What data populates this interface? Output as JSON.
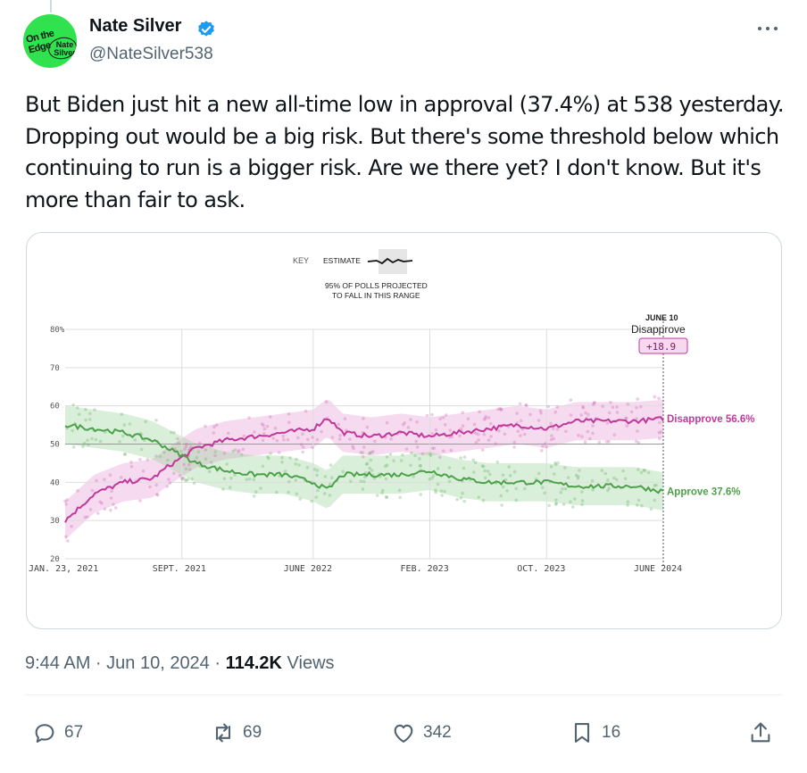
{
  "author": {
    "name": "Nate Silver",
    "handle": "@NateSilver538",
    "avatar_text_top": "On the Edge",
    "avatar_text_bottom": "Nate Silver",
    "verified": true
  },
  "tweet": {
    "text": "But Biden just hit a new all-time low in approval (37.4%) at 538 yesterday. Dropping out would be a big risk. But there's some threshold below which continuing to run is a bigger risk. Are we there yet? I don't know. But it's more than fair to ask."
  },
  "meta": {
    "time": "9:44 AM · Jun 10, 2024 · ",
    "views_count": "114.2K",
    "views_label": " Views"
  },
  "actions": {
    "replies": "67",
    "reposts": "69",
    "likes": "342",
    "bookmarks": "16"
  },
  "icons": [
    "verified-badge-icon",
    "more-icon",
    "reply-icon",
    "repost-icon",
    "like-icon",
    "bookmark-icon",
    "share-icon"
  ],
  "colors": {
    "approve": "#4ea04a",
    "disapprove": "#c2389a",
    "verified": "#1d9bf0",
    "avatar_bg": "#2fe24e"
  },
  "chart_data": {
    "type": "line",
    "key_label": "KEY",
    "key_estimate": "ESTIMATE",
    "key_note_line1": "95% OF POLLS PROJECTED",
    "key_note_line2": "TO FALL IN THIS RANGE",
    "x_tick_labels": [
      "JAN. 23, 2021",
      "SEPT. 2021",
      "JUNE 2022",
      "FEB. 2023",
      "OCT. 2023",
      "JUNE 2024"
    ],
    "y_tick_labels": [
      "80%",
      "70",
      "60",
      "50",
      "40",
      "30",
      "20"
    ],
    "ylim": [
      20,
      80
    ],
    "annotation_date": "JUNE 10",
    "annotation_label": "Disapprove",
    "annotation_value": "+18.9",
    "series": [
      {
        "name": "Disapprove",
        "end_label": "Disapprove 56.6%",
        "x": [
          "2021-01",
          "2021-03",
          "2021-05",
          "2021-07",
          "2021-08",
          "2021-10",
          "2021-12",
          "2022-02",
          "2022-04",
          "2022-06",
          "2022-07",
          "2022-08",
          "2022-10",
          "2022-12",
          "2023-02",
          "2023-04",
          "2023-06",
          "2023-08",
          "2023-10",
          "2023-12",
          "2024-02",
          "2024-04",
          "2024-06"
        ],
        "values": [
          30,
          37,
          40,
          41,
          44,
          49,
          51,
          52,
          53,
          54,
          57,
          53,
          52,
          53,
          52,
          53,
          54,
          55,
          54,
          56,
          56,
          56,
          56.6
        ]
      },
      {
        "name": "Approve",
        "end_label": "Approve 37.6%",
        "x": [
          "2021-01",
          "2021-03",
          "2021-05",
          "2021-07",
          "2021-08",
          "2021-10",
          "2021-12",
          "2022-02",
          "2022-04",
          "2022-06",
          "2022-07",
          "2022-08",
          "2022-10",
          "2022-12",
          "2023-02",
          "2023-04",
          "2023-06",
          "2023-08",
          "2023-10",
          "2023-12",
          "2024-02",
          "2024-04",
          "2024-06"
        ],
        "values": [
          55,
          54,
          53,
          51,
          49,
          45,
          43,
          42,
          42,
          40,
          38,
          42,
          42,
          42,
          43,
          41,
          40,
          40,
          40,
          39,
          39,
          39,
          37.6
        ]
      }
    ]
  }
}
